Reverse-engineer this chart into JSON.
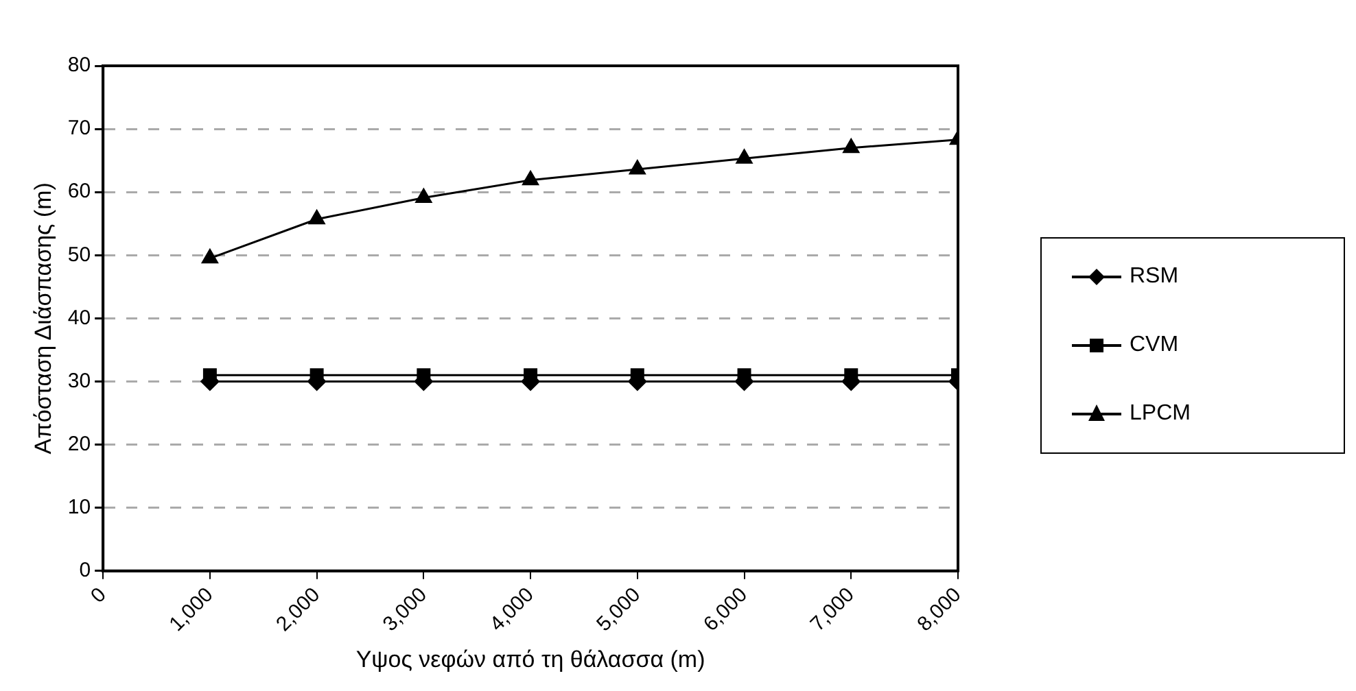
{
  "chart_data": {
    "type": "line",
    "xlabel": "Υψος νεφών από τη θάλασσα (m)",
    "ylabel": "Απόσταση Διάσπασης (m)",
    "x": [
      1000,
      2000,
      3000,
      4000,
      5000,
      6000,
      7000,
      8000
    ],
    "xlim": [
      0,
      8000
    ],
    "xticks": [
      0,
      {
        "value": 1000,
        "label": "1,000"
      },
      {
        "value": 2000,
        "label": "2,000"
      },
      {
        "value": 3000,
        "label": "3,000"
      },
      {
        "value": 4000,
        "label": "4,000"
      },
      {
        "value": 5000,
        "label": "5,000"
      },
      {
        "value": 6000,
        "label": "6,000"
      },
      {
        "value": 7000,
        "label": "7,000"
      },
      {
        "value": 8000,
        "label": "8,000"
      }
    ],
    "ylim": [
      0,
      80
    ],
    "yticks": [
      0,
      10,
      20,
      30,
      40,
      50,
      60,
      70,
      80
    ],
    "grid": "y",
    "legend": "right",
    "line_style": "solid",
    "series": [
      {
        "name": "RSM",
        "color": "#000000",
        "marker": "diamond",
        "values": [
          30,
          30,
          30,
          30,
          30,
          30,
          30,
          30
        ]
      },
      {
        "name": "CVM",
        "color": "#000000",
        "marker": "square",
        "values": [
          31,
          31,
          31,
          31,
          31,
          31,
          31,
          31
        ]
      },
      {
        "name": "LPCM",
        "color": "#000000",
        "marker": "triangle",
        "values": [
          49.5,
          55.7,
          59.1,
          61.9,
          63.6,
          65.3,
          67,
          68.3
        ]
      }
    ]
  }
}
